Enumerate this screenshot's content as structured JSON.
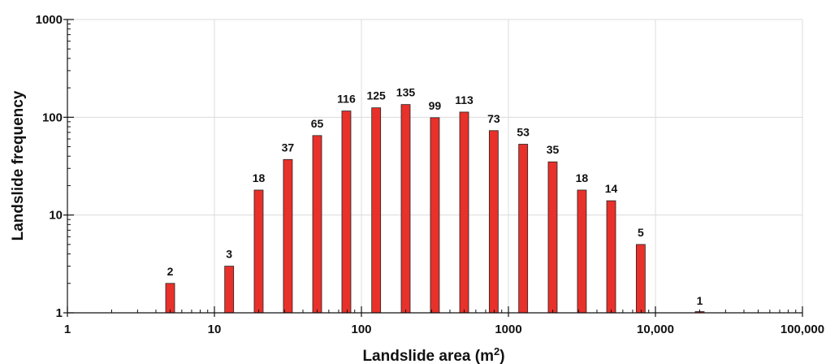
{
  "chart_data": {
    "type": "bar",
    "xlabel": "Landslide area (m",
    "xlabel_superscript": "2",
    "xlabel_suffix": ")",
    "ylabel": "Landslide frequency",
    "x_scale": "log",
    "y_scale": "log",
    "xlim": [
      1,
      100000
    ],
    "ylim": [
      1,
      1000
    ],
    "grid": true,
    "x_ticks": [
      {
        "value": 1,
        "label": "1"
      },
      {
        "value": 10,
        "label": "10"
      },
      {
        "value": 100,
        "label": "100"
      },
      {
        "value": 1000,
        "label": "1000"
      },
      {
        "value": 10000,
        "label": "10,000"
      },
      {
        "value": 100000,
        "label": "100,000"
      }
    ],
    "y_ticks": [
      {
        "value": 1,
        "label": "1"
      },
      {
        "value": 10,
        "label": "10"
      },
      {
        "value": 100,
        "label": "100"
      },
      {
        "value": 1000,
        "label": "1000"
      }
    ],
    "bar_color": "#e8312a",
    "bars": [
      {
        "x": 5,
        "value": 2
      },
      {
        "x": 12.6,
        "value": 3
      },
      {
        "x": 20,
        "value": 18
      },
      {
        "x": 31.6,
        "value": 37
      },
      {
        "x": 50,
        "value": 65
      },
      {
        "x": 79,
        "value": 116
      },
      {
        "x": 126,
        "value": 125
      },
      {
        "x": 200,
        "value": 135
      },
      {
        "x": 316,
        "value": 99
      },
      {
        "x": 500,
        "value": 113
      },
      {
        "x": 794,
        "value": 73
      },
      {
        "x": 1260,
        "value": 53
      },
      {
        "x": 2000,
        "value": 35
      },
      {
        "x": 3160,
        "value": 18
      },
      {
        "x": 5000,
        "value": 14
      },
      {
        "x": 7940,
        "value": 5
      },
      {
        "x": 20000,
        "value": 1
      }
    ]
  }
}
